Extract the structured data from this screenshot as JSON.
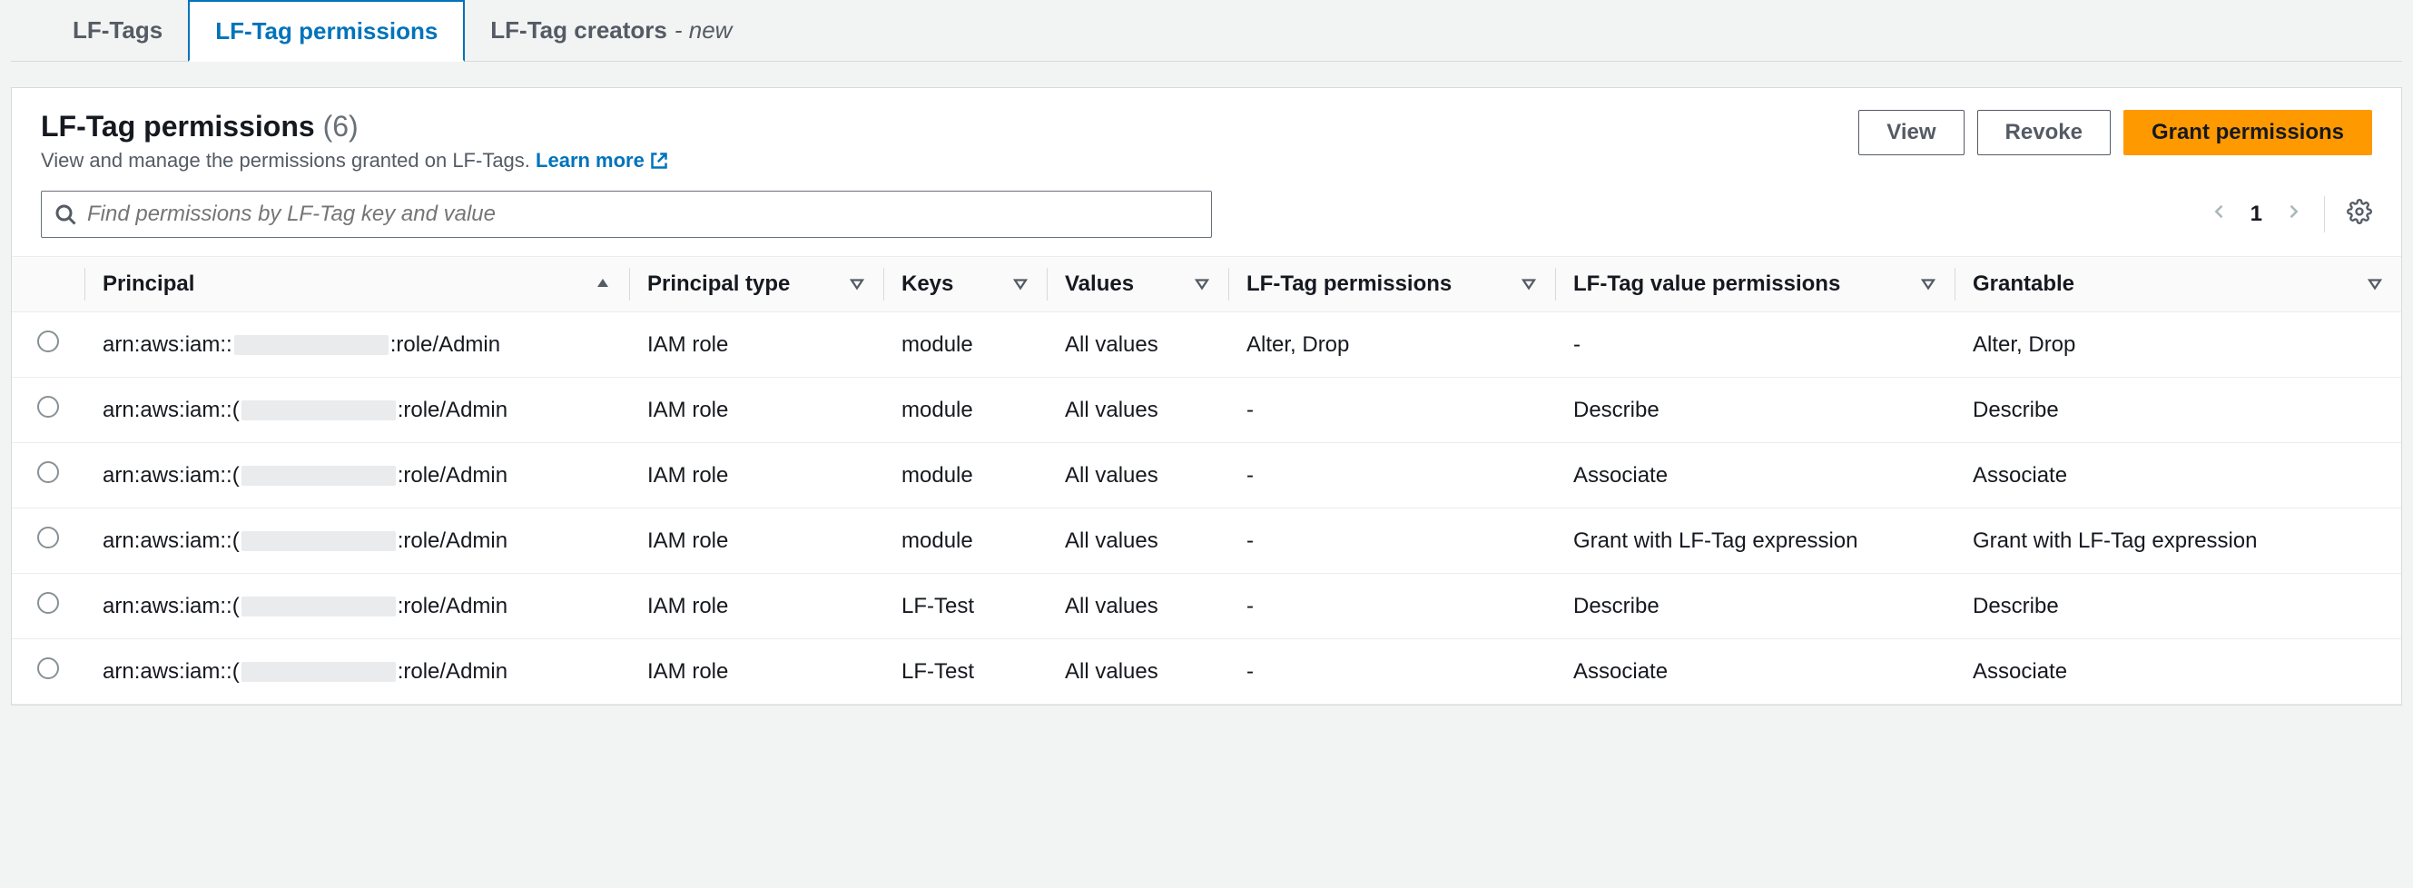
{
  "tabs": [
    {
      "label": "LF-Tags",
      "active": false,
      "new": false
    },
    {
      "label": "LF-Tag permissions",
      "active": true,
      "new": false
    },
    {
      "label": "LF-Tag creators",
      "active": false,
      "new": true,
      "new_label": "- new"
    }
  ],
  "header": {
    "title": "LF-Tag permissions",
    "count": "(6)",
    "subtitle": "View and manage the permissions granted on LF-Tags.",
    "learn_more": "Learn more"
  },
  "buttons": {
    "view": "View",
    "revoke": "Revoke",
    "grant": "Grant permissions"
  },
  "search": {
    "placeholder": "Find permissions by LF-Tag key and value"
  },
  "pagination": {
    "page": "1"
  },
  "columns": {
    "principal": "Principal",
    "principal_type": "Principal type",
    "keys": "Keys",
    "values": "Values",
    "lf_tag_permissions": "LF-Tag permissions",
    "lf_tag_value_permissions": "LF-Tag value permissions",
    "grantable": "Grantable"
  },
  "rows": [
    {
      "principal_prefix": "arn:aws:iam::",
      "principal_suffix": ":role/Admin",
      "principal_type": "IAM role",
      "keys": "module",
      "values": "All values",
      "perm": "Alter, Drop",
      "val_perm": "-",
      "grantable": "Alter, Drop"
    },
    {
      "principal_prefix": "arn:aws:iam::(",
      "principal_suffix": ":role/Admin",
      "principal_type": "IAM role",
      "keys": "module",
      "values": "All values",
      "perm": "-",
      "val_perm": "Describe",
      "grantable": "Describe"
    },
    {
      "principal_prefix": "arn:aws:iam::(",
      "principal_suffix": ":role/Admin",
      "principal_type": "IAM role",
      "keys": "module",
      "values": "All values",
      "perm": "-",
      "val_perm": "Associate",
      "grantable": "Associate"
    },
    {
      "principal_prefix": "arn:aws:iam::(",
      "principal_suffix": ":role/Admin",
      "principal_type": "IAM role",
      "keys": "module",
      "values": "All values",
      "perm": "-",
      "val_perm": "Grant with LF-Tag expression",
      "grantable": "Grant with LF-Tag expression"
    },
    {
      "principal_prefix": "arn:aws:iam::(",
      "principal_suffix": ":role/Admin",
      "principal_type": "IAM role",
      "keys": "LF-Test",
      "values": "All values",
      "perm": "-",
      "val_perm": "Describe",
      "grantable": "Describe"
    },
    {
      "principal_prefix": "arn:aws:iam::(",
      "principal_suffix": ":role/Admin",
      "principal_type": "IAM role",
      "keys": "LF-Test",
      "values": "All values",
      "perm": "-",
      "val_perm": "Associate",
      "grantable": "Associate"
    }
  ],
  "colors": {
    "accent_blue": "#0073bb",
    "primary_orange": "#ff9900",
    "border_gray": "#d5dbdb",
    "text_dark": "#16191f",
    "text_muted": "#545b64",
    "bg_page": "#f2f3f3",
    "bg_panel": "#ffffff",
    "redact": "#e9ebed"
  }
}
